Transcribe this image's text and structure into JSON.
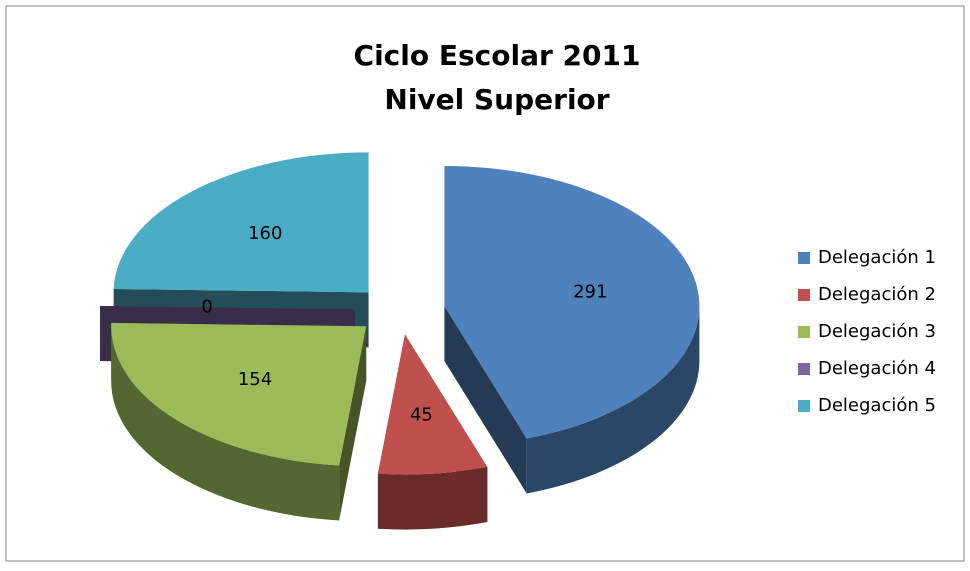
{
  "chart_data": {
    "type": "pie",
    "title": "Ciclo Escolar 2011",
    "subtitle": "Nivel Superior",
    "categories": [
      "Delegación 1",
      "Delegación 2",
      "Delegación 3",
      "Delegación 4",
      "Delegación 5"
    ],
    "values": [
      291,
      45,
      154,
      0,
      160
    ],
    "colors": [
      "#4f81bd",
      "#c0504d",
      "#9bbb59",
      "#8064a2",
      "#4bacc6"
    ],
    "legend": "right",
    "exploded": true,
    "three_d": true
  }
}
